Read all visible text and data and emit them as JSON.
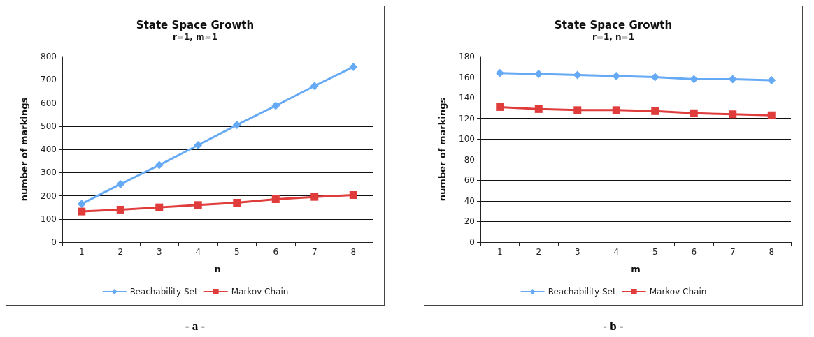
{
  "chart_data": [
    {
      "type": "line",
      "title": "State Space Growth",
      "subtitle": "r=1, m=1",
      "xlabel": "n",
      "ylabel": "number of markings",
      "categories": [
        "1",
        "2",
        "3",
        "4",
        "5",
        "6",
        "7",
        "8"
      ],
      "ylim": [
        0,
        800
      ],
      "yticks": [
        0,
        100,
        200,
        300,
        400,
        500,
        600,
        700,
        800
      ],
      "grid": "y",
      "legend": "bottom",
      "annotations": [
        "- a -"
      ],
      "series": [
        {
          "name": "Reachability Set",
          "color": "#66aaf5",
          "marker": "diamond",
          "values": [
            165,
            250,
            332,
            418,
            505,
            588,
            673,
            755
          ]
        },
        {
          "name": "Markov Chain",
          "color": "#e03c3c",
          "marker": "square",
          "values": [
            132,
            140,
            150,
            160,
            170,
            185,
            195,
            203
          ]
        }
      ]
    },
    {
      "type": "line",
      "title": "State Space Growth",
      "subtitle": "r=1, n=1",
      "xlabel": "m",
      "ylabel": "number of markings",
      "categories": [
        "1",
        "2",
        "3",
        "4",
        "5",
        "6",
        "7",
        "8"
      ],
      "ylim": [
        0,
        180
      ],
      "yticks": [
        0,
        20,
        40,
        60,
        80,
        100,
        120,
        140,
        160,
        180
      ],
      "grid": "y",
      "legend": "bottom",
      "annotations": [
        "- b -"
      ],
      "series": [
        {
          "name": "Reachability Set",
          "color": "#66aaf5",
          "marker": "diamond",
          "values": [
            164,
            163,
            162,
            161,
            160,
            158,
            158,
            157
          ]
        },
        {
          "name": "Markov Chain",
          "color": "#e03c3c",
          "marker": "square",
          "values": [
            131,
            129,
            128,
            128,
            127,
            125,
            124,
            123
          ]
        }
      ]
    }
  ]
}
